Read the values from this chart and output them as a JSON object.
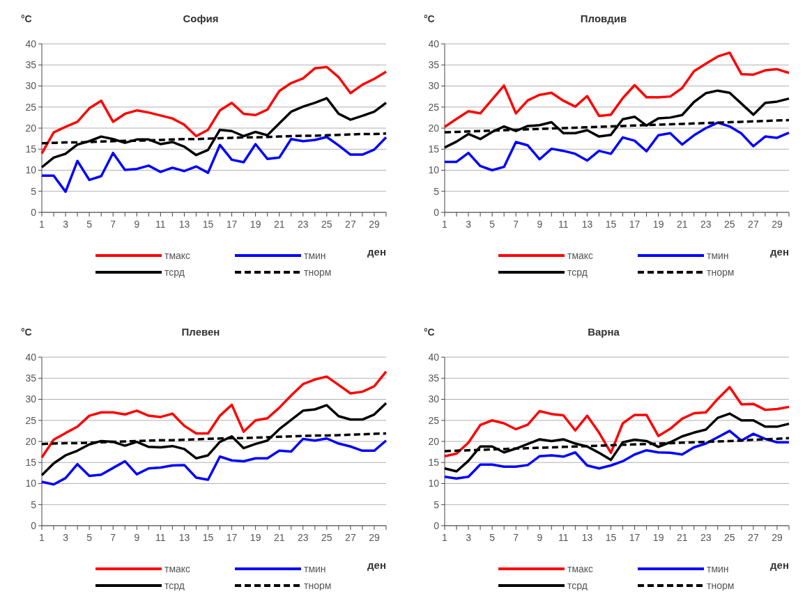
{
  "chart_data": [
    {
      "type": "line",
      "title": "София",
      "ylabel": "°C",
      "xlabel": "ден",
      "x": [
        1,
        2,
        3,
        4,
        5,
        6,
        7,
        8,
        9,
        10,
        11,
        12,
        13,
        14,
        15,
        16,
        17,
        18,
        19,
        20,
        21,
        22,
        23,
        24,
        25,
        26,
        27,
        28,
        29,
        30
      ],
      "xlim": [
        1,
        30
      ],
      "xticks": [
        1,
        {
          "value": 2,
          "label": null
        },
        3,
        {
          "value": 4,
          "label": null
        },
        5,
        {
          "value": 6,
          "label": null
        },
        7,
        {
          "value": 8,
          "label": null
        },
        9,
        {
          "value": 10,
          "label": null
        },
        11,
        {
          "value": 12,
          "label": null
        },
        13,
        {
          "value": 14,
          "label": null
        },
        15,
        {
          "value": 16,
          "label": null
        },
        17,
        {
          "value": 18,
          "label": null
        },
        19,
        {
          "value": 20,
          "label": null
        },
        21,
        {
          "value": 22,
          "label": null
        },
        23,
        {
          "value": 24,
          "label": null
        },
        25,
        {
          "value": 26,
          "label": null
        },
        27,
        {
          "value": 28,
          "label": null
        },
        29,
        {
          "value": 30,
          "label": null
        }
      ],
      "ylim": [
        0,
        40
      ],
      "yticks": [
        0,
        5,
        10,
        15,
        20,
        25,
        30,
        35,
        40
      ],
      "grid": "y",
      "legend": "bottom",
      "series": [
        {
          "name": "тмакс",
          "color": "#ff0000",
          "values": [
            14,
            19,
            20.3,
            21.5,
            24.7,
            26.5,
            21.5,
            23.4,
            24.2,
            23.7,
            23,
            22.3,
            20.8,
            18.1,
            19.6,
            24.2,
            26,
            23.4,
            23.1,
            24.4,
            28.8,
            30.7,
            31.8,
            34.2,
            34.5,
            32.1,
            28.3,
            30.3,
            31.7,
            33.4
          ]
        },
        {
          "name": "тмин",
          "color": "#0000ff",
          "values": [
            8.7,
            8.7,
            4.9,
            12.2,
            7.7,
            8.6,
            14.1,
            10.1,
            10.3,
            11.1,
            9.6,
            10.6,
            9.8,
            10.9,
            9.4,
            16,
            12.5,
            11.9,
            16.2,
            12.7,
            13,
            17.4,
            16.9,
            17.2,
            17.9,
            15.9,
            13.7,
            13.7,
            14.9,
            17.8
          ]
        },
        {
          "name": "тсрд",
          "color": "#000000",
          "values": [
            10.7,
            13,
            13.9,
            16.1,
            16.9,
            18,
            17.4,
            16.5,
            17.3,
            17.3,
            16.2,
            16.7,
            15.6,
            13.6,
            14.8,
            19.6,
            19.3,
            18.1,
            19.1,
            18.3,
            21.1,
            23.9,
            25.1,
            26,
            27.1,
            23.4,
            22,
            22.9,
            23.9,
            26
          ]
        },
        {
          "name": "тнорм",
          "color": "#000000",
          "line_style": "dashed",
          "values": [
            16.4,
            16.5,
            16.6,
            16.6,
            16.7,
            16.8,
            16.9,
            17.0,
            17.0,
            17.1,
            17.2,
            17.3,
            17.4,
            17.4,
            17.5,
            17.6,
            17.7,
            17.8,
            17.8,
            17.9,
            18.0,
            18.1,
            18.2,
            18.2,
            18.3,
            18.4,
            18.5,
            18.6,
            18.6,
            18.7
          ]
        }
      ]
    },
    {
      "type": "line",
      "title": "Пловдив",
      "ylabel": "°C",
      "xlabel": "ден",
      "x": [
        1,
        2,
        3,
        4,
        5,
        6,
        7,
        8,
        9,
        10,
        11,
        12,
        13,
        14,
        15,
        16,
        17,
        18,
        19,
        20,
        21,
        22,
        23,
        24,
        25,
        26,
        27,
        28,
        29,
        30
      ],
      "xlim": [
        1,
        30
      ],
      "xticks": [
        1,
        {
          "value": 2,
          "label": null
        },
        3,
        {
          "value": 4,
          "label": null
        },
        5,
        {
          "value": 6,
          "label": null
        },
        7,
        {
          "value": 8,
          "label": null
        },
        9,
        {
          "value": 10,
          "label": null
        },
        11,
        {
          "value": 12,
          "label": null
        },
        13,
        {
          "value": 14,
          "label": null
        },
        15,
        {
          "value": 16,
          "label": null
        },
        17,
        {
          "value": 18,
          "label": null
        },
        19,
        {
          "value": 20,
          "label": null
        },
        21,
        {
          "value": 22,
          "label": null
        },
        23,
        {
          "value": 24,
          "label": null
        },
        25,
        {
          "value": 26,
          "label": null
        },
        27,
        {
          "value": 28,
          "label": null
        },
        29,
        {
          "value": 30,
          "label": null
        }
      ],
      "ylim": [
        0,
        40
      ],
      "yticks": [
        0,
        5,
        10,
        15,
        20,
        25,
        30,
        35,
        40
      ],
      "grid": "y",
      "legend": "bottom",
      "series": [
        {
          "name": "тмакс",
          "color": "#ff0000",
          "values": [
            20.3,
            22.2,
            24,
            23.5,
            26.8,
            30.1,
            23.5,
            26.6,
            27.9,
            28.4,
            26.5,
            25.1,
            27.6,
            22.9,
            23.2,
            27.1,
            30.2,
            27.3,
            27.3,
            27.5,
            29.5,
            33.5,
            35.3,
            37,
            37.9,
            32.8,
            32.7,
            33.7,
            34,
            33.1
          ]
        },
        {
          "name": "тмин",
          "color": "#0000ff",
          "values": [
            12,
            12,
            14.1,
            11,
            10,
            10.8,
            16.7,
            15.9,
            12.6,
            15.1,
            14.6,
            13.9,
            12.3,
            14.6,
            13.9,
            17.8,
            17,
            14.5,
            18.3,
            18.8,
            16.1,
            18.3,
            20,
            21.3,
            20.4,
            18.7,
            15.7,
            18,
            17.7,
            18.9
          ]
        },
        {
          "name": "тсрд",
          "color": "#000000",
          "values": [
            15.4,
            16.8,
            18.6,
            17.4,
            19.1,
            20.4,
            19.3,
            20.5,
            20.7,
            21.4,
            18.8,
            18.8,
            19.5,
            18,
            18.4,
            22.1,
            22.7,
            20.6,
            22.3,
            22.5,
            23.1,
            26.2,
            28.3,
            28.9,
            28.4,
            25.8,
            23.2,
            26,
            26.3,
            27
          ]
        },
        {
          "name": "тнорм",
          "color": "#000000",
          "line_style": "dashed",
          "values": [
            19.0,
            19.1,
            19.2,
            19.3,
            19.4,
            19.5,
            19.6,
            19.7,
            19.8,
            19.9,
            20.0,
            20.1,
            20.2,
            20.3,
            20.4,
            20.5,
            20.6,
            20.7,
            20.8,
            20.9,
            21.0,
            21.1,
            21.2,
            21.3,
            21.4,
            21.5,
            21.6,
            21.7,
            21.8,
            21.9
          ]
        }
      ]
    },
    {
      "type": "line",
      "title": "Плевен",
      "ylabel": "°C",
      "xlabel": "ден",
      "x": [
        1,
        2,
        3,
        4,
        5,
        6,
        7,
        8,
        9,
        10,
        11,
        12,
        13,
        14,
        15,
        16,
        17,
        18,
        19,
        20,
        21,
        22,
        23,
        24,
        25,
        26,
        27,
        28,
        29,
        30
      ],
      "xlim": [
        1,
        30
      ],
      "xticks": [
        1,
        {
          "value": 2,
          "label": null
        },
        3,
        {
          "value": 4,
          "label": null
        },
        5,
        {
          "value": 6,
          "label": null
        },
        7,
        {
          "value": 8,
          "label": null
        },
        9,
        {
          "value": 10,
          "label": null
        },
        11,
        {
          "value": 12,
          "label": null
        },
        13,
        {
          "value": 14,
          "label": null
        },
        15,
        {
          "value": 16,
          "label": null
        },
        17,
        {
          "value": 18,
          "label": null
        },
        19,
        {
          "value": 20,
          "label": null
        },
        21,
        {
          "value": 22,
          "label": null
        },
        23,
        {
          "value": 24,
          "label": null
        },
        25,
        {
          "value": 26,
          "label": null
        },
        27,
        {
          "value": 28,
          "label": null
        },
        29,
        {
          "value": 30,
          "label": null
        }
      ],
      "ylim": [
        0,
        40
      ],
      "yticks": [
        0,
        5,
        10,
        15,
        20,
        25,
        30,
        35,
        40
      ],
      "grid": "y",
      "legend": "bottom",
      "series": [
        {
          "name": "тмакс",
          "color": "#ff0000",
          "values": [
            16.2,
            20.4,
            22,
            23.5,
            26.1,
            26.9,
            26.9,
            26.4,
            27.3,
            26.1,
            25.8,
            26.6,
            23.7,
            21.9,
            21.9,
            26.1,
            28.7,
            22.3,
            25,
            25.5,
            28,
            30.9,
            33.6,
            34.7,
            35.4,
            33.4,
            31.4,
            31.8,
            33.1,
            36.6
          ]
        },
        {
          "name": "тмин",
          "color": "#0000ff",
          "values": [
            10.4,
            9.8,
            11.3,
            14.6,
            11.8,
            12.1,
            13.7,
            15.3,
            12.2,
            13.6,
            13.8,
            14.3,
            14.4,
            11.4,
            10.9,
            16.4,
            15.5,
            15.3,
            16,
            16,
            17.8,
            17.6,
            20.6,
            20.2,
            20.7,
            19.5,
            18.8,
            17.8,
            17.8,
            20.2
          ]
        },
        {
          "name": "тсрд",
          "color": "#000000",
          "values": [
            12,
            14.8,
            16.7,
            17.8,
            19.3,
            20.1,
            19.9,
            19,
            19.9,
            18.7,
            18.6,
            18.9,
            18.2,
            16,
            16.7,
            19.9,
            21.2,
            18.4,
            19.4,
            20.2,
            22.9,
            25.1,
            27.3,
            27.6,
            28.6,
            26,
            25.2,
            25.2,
            26.4,
            29.1
          ]
        },
        {
          "name": "тнорм",
          "color": "#000000",
          "line_style": "dashed",
          "values": [
            19.4,
            19.5,
            19.6,
            19.6,
            19.7,
            19.8,
            19.9,
            20.0,
            20.1,
            20.2,
            20.3,
            20.3,
            20.4,
            20.5,
            20.6,
            20.7,
            20.8,
            20.8,
            20.9,
            21.0,
            21.1,
            21.2,
            21.3,
            21.4,
            21.4,
            21.5,
            21.6,
            21.7,
            21.8,
            21.9
          ]
        }
      ]
    },
    {
      "type": "line",
      "title": "Варна",
      "ylabel": "°C",
      "xlabel": "ден",
      "x": [
        1,
        2,
        3,
        4,
        5,
        6,
        7,
        8,
        9,
        10,
        11,
        12,
        13,
        14,
        15,
        16,
        17,
        18,
        19,
        20,
        21,
        22,
        23,
        24,
        25,
        26,
        27,
        28,
        29,
        30
      ],
      "xlim": [
        1,
        30
      ],
      "xticks": [
        1,
        {
          "value": 2,
          "label": null
        },
        3,
        {
          "value": 4,
          "label": null
        },
        5,
        {
          "value": 6,
          "label": null
        },
        7,
        {
          "value": 8,
          "label": null
        },
        9,
        {
          "value": 10,
          "label": null
        },
        11,
        {
          "value": 12,
          "label": null
        },
        13,
        {
          "value": 14,
          "label": null
        },
        15,
        {
          "value": 16,
          "label": null
        },
        17,
        {
          "value": 18,
          "label": null
        },
        19,
        {
          "value": 20,
          "label": null
        },
        21,
        {
          "value": 22,
          "label": null
        },
        23,
        {
          "value": 24,
          "label": null
        },
        25,
        {
          "value": 26,
          "label": null
        },
        27,
        {
          "value": 28,
          "label": null
        },
        29,
        {
          "value": 30,
          "label": null
        }
      ],
      "ylim": [
        0,
        40
      ],
      "yticks": [
        0,
        5,
        10,
        15,
        20,
        25,
        30,
        35,
        40
      ],
      "grid": "y",
      "legend": "bottom",
      "series": [
        {
          "name": "тмакс",
          "color": "#ff0000",
          "values": [
            16.5,
            17.1,
            19.7,
            23.9,
            25,
            24.3,
            22.9,
            24,
            27.2,
            26.5,
            26.2,
            22.6,
            26.1,
            22.1,
            17.3,
            24.3,
            26.3,
            26.3,
            21.3,
            23,
            25.4,
            26.7,
            26.9,
            30.1,
            32.9,
            28.8,
            28.9,
            27.5,
            27.7,
            28.2
          ]
        },
        {
          "name": "тмин",
          "color": "#0000ff",
          "values": [
            11.6,
            11.2,
            11.6,
            14.5,
            14.5,
            14,
            14,
            14.4,
            16.5,
            16.7,
            16.4,
            17.4,
            14.3,
            13.6,
            14.3,
            15.3,
            16.9,
            17.9,
            17.4,
            17.3,
            16.9,
            18.6,
            19.5,
            21,
            22.5,
            20.2,
            21.8,
            20.6,
            19.8,
            19.8
          ]
        },
        {
          "name": "тсрд",
          "color": "#000000",
          "values": [
            13.6,
            12.9,
            15.4,
            18.8,
            18.8,
            17.4,
            18.3,
            19.4,
            20.5,
            20.1,
            20.5,
            19.5,
            18.8,
            17.3,
            15.6,
            19.8,
            20.4,
            20.1,
            18.7,
            19.8,
            21.2,
            22.1,
            22.8,
            25.6,
            26.6,
            25,
            25,
            23.5,
            23.5,
            24.2
          ]
        },
        {
          "name": "тнорм",
          "color": "#000000",
          "line_style": "dashed",
          "values": [
            17.7,
            17.8,
            17.9,
            18.0,
            18.1,
            18.2,
            18.3,
            18.4,
            18.5,
            18.6,
            18.7,
            18.8,
            18.9,
            19.0,
            19.1,
            19.2,
            19.3,
            19.4,
            19.5,
            19.6,
            19.7,
            19.8,
            19.9,
            20.0,
            20.1,
            20.2,
            20.4,
            20.5,
            20.6,
            20.8
          ]
        }
      ]
    }
  ]
}
